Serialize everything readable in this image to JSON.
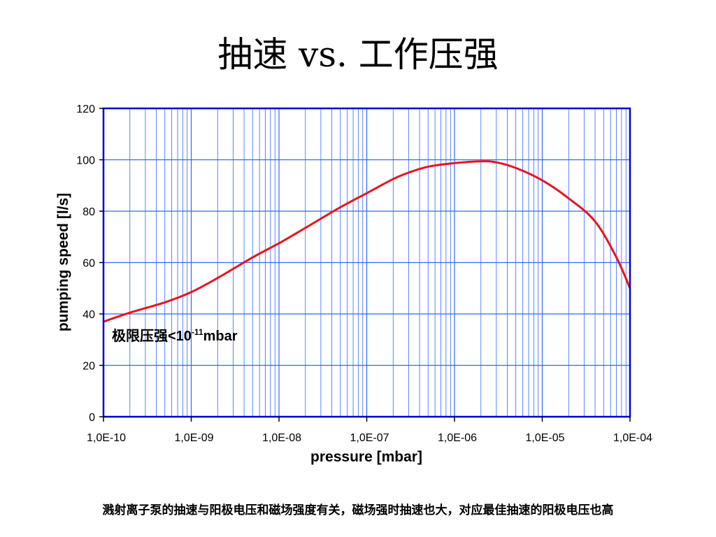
{
  "page": {
    "title": "抽速 vs. 工作压强",
    "caption": "溅射离子泵的抽速与阳极电压和磁场强度有关，磁场强时抽速也大，对应最佳抽速的阳极电压也高"
  },
  "chart_data": {
    "type": "line",
    "title": "抽速 vs. 工作压强",
    "xlabel": "pressure [mbar]",
    "ylabel": "pumping speed [l/s]",
    "x_scale": "log",
    "xlim": [
      1e-10,
      0.0001
    ],
    "ylim": [
      0,
      120
    ],
    "grid": true,
    "x_ticks": [
      1e-10,
      1e-09,
      1e-08,
      1e-07,
      1e-06,
      1e-05,
      0.0001
    ],
    "x_tick_labels": [
      "1,0E-10",
      "1,0E-09",
      "1,0E-08",
      "1,0E-07",
      "1,0E-06",
      "1,0E-05",
      "1,0E-04"
    ],
    "y_ticks": [
      0,
      20,
      40,
      60,
      80,
      100,
      120
    ],
    "y_tick_labels": [
      "0",
      "20",
      "40",
      "60",
      "80",
      "100",
      "120"
    ],
    "line_color": "#e8141e",
    "grid_color": "#3366ff",
    "axis_color": "#0000cc",
    "annotation": {
      "prefix": "极限压强<10",
      "superscript": "-11",
      "suffix": "mbar"
    },
    "series": [
      {
        "x": [
          1e-10,
          2e-10,
          5e-10,
          1e-09,
          2e-09,
          5e-09,
          1e-08,
          2e-08,
          5e-08,
          1e-07,
          2e-07,
          3e-07,
          5e-07,
          1e-06,
          2e-06,
          3e-06,
          5e-06,
          1e-05,
          2e-05,
          4e-05,
          7e-05,
          0.0001
        ],
        "y": [
          37,
          40.5,
          44.5,
          48.5,
          54,
          62,
          67.5,
          73.5,
          81.5,
          87,
          92.5,
          95,
          97.3,
          98.7,
          99.4,
          99,
          96.8,
          92,
          85,
          76,
          62,
          50
        ]
      }
    ]
  }
}
